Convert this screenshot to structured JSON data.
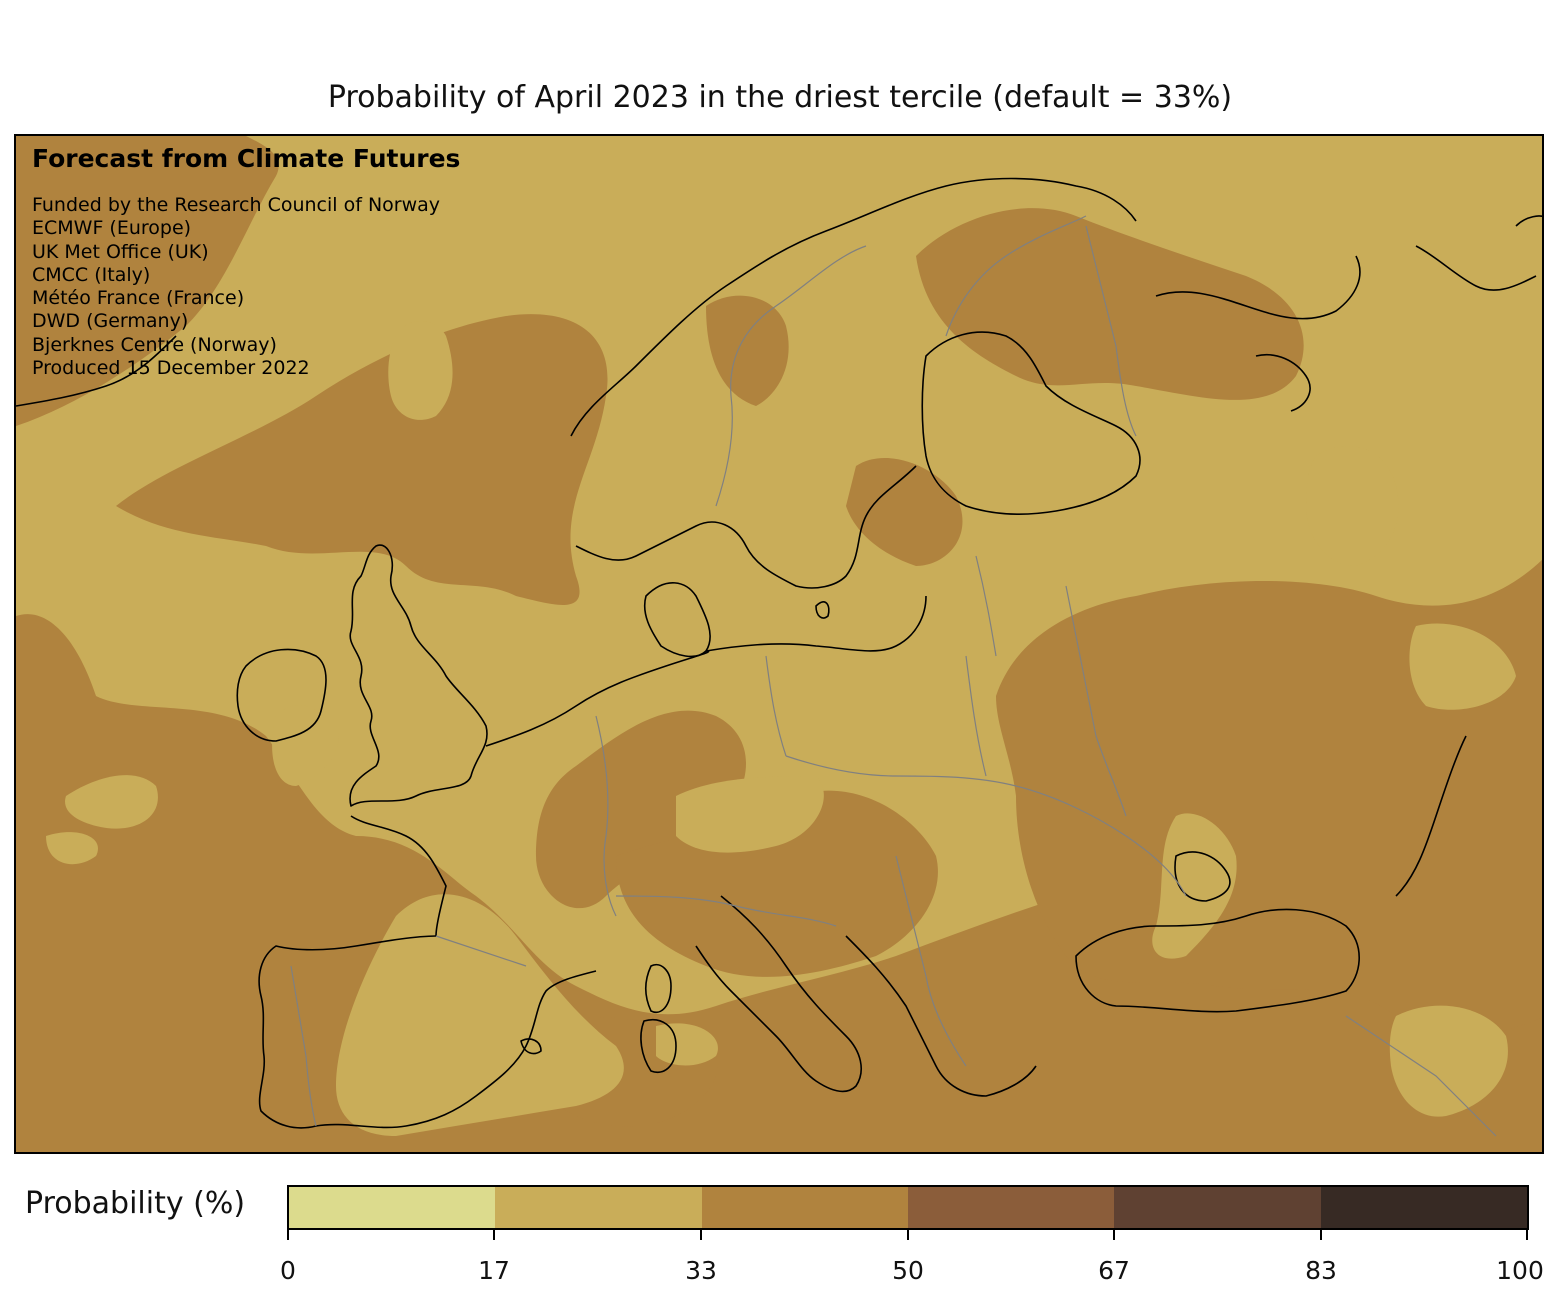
{
  "title": "Probability of April 2023 in the driest tercile (default = 33%)",
  "notes": {
    "heading": "Forecast from Climate Futures",
    "lines": [
      "Funded by the Research Council of Norway",
      "ECMWF (Europe)",
      "UK Met Office (UK)",
      "CMCC (Italy)",
      "Météo France (France)",
      "DWD (Germany)",
      "Bjerknes Centre (Norway)",
      "Produced 15 December 2022"
    ]
  },
  "colorbar": {
    "label": "Probability (%)",
    "ticks": [
      "0",
      "17",
      "33",
      "50",
      "67",
      "83",
      "100"
    ],
    "colors": [
      "#dcdb8d",
      "#c9ad59",
      "#b0833e",
      "#8b5d3a",
      "#5f4132",
      "#372a24"
    ]
  },
  "map": {
    "background_color": "#c9ad59",
    "region_color": "#b0833e",
    "coastline_color": "#000000",
    "border_color": "#808080"
  }
}
